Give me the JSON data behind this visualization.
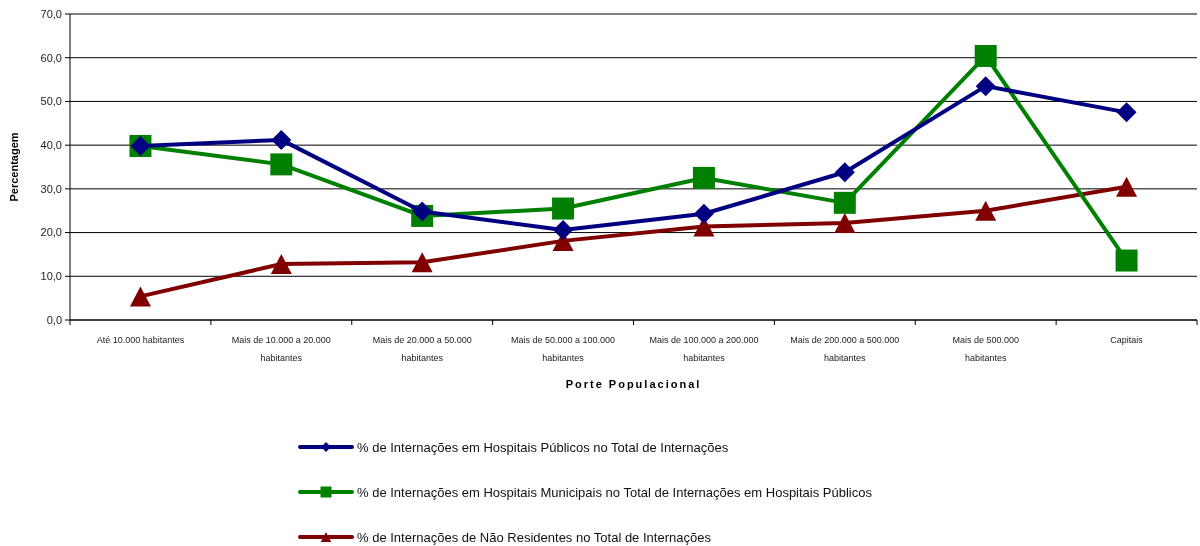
{
  "chart_data": {
    "type": "line",
    "xlabel": "Porte Populacional",
    "ylabel": "Percentagem",
    "categories": [
      "Até 10.000 habitantes",
      "Mais de 10.000 a 20.000 habitantes",
      "Mais de 20.000 a 50.000 habitantes",
      "Mais de 50.000 a 100.000 habitantes",
      "Mais de 100.000 a 200.000 habitantes",
      "Mais de 200.000 a 500.000 habitantes",
      "Mais de 500.000 habitantes",
      "Capitais"
    ],
    "series": [
      {
        "name": "% de Internações em Hospitais Públicos no Total de Internações",
        "color": "#000080",
        "marker": "diamond",
        "values": [
          39.8,
          41.2,
          24.8,
          20.6,
          24.3,
          33.8,
          53.5,
          47.5
        ]
      },
      {
        "name": "% de Internações em Hospitais Municipais no Total de Internações em Hospitais Públicos",
        "color": "#008000",
        "marker": "square",
        "values": [
          39.8,
          35.6,
          23.8,
          25.5,
          32.5,
          26.8,
          60.4,
          13.6
        ]
      },
      {
        "name": "% de Internações de Não Residentes no Total de Internações",
        "color": "#800000",
        "marker": "triangle",
        "values": [
          5.4,
          12.8,
          13.2,
          18.1,
          21.4,
          22.2,
          25.0,
          30.5
        ]
      }
    ],
    "ylim": [
      0,
      70
    ],
    "yticks": [
      {
        "value": 0,
        "label": "0,0"
      },
      {
        "value": 10,
        "label": "10,0"
      },
      {
        "value": 20,
        "label": "20,0"
      },
      {
        "value": 30,
        "label": "30,0"
      },
      {
        "value": 40,
        "label": "40,0"
      },
      {
        "value": 50,
        "label": "50,0"
      },
      {
        "value": 60,
        "label": "60,0"
      },
      {
        "value": 70,
        "label": "70,0"
      }
    ],
    "grid": "y",
    "legend": "bottom"
  }
}
